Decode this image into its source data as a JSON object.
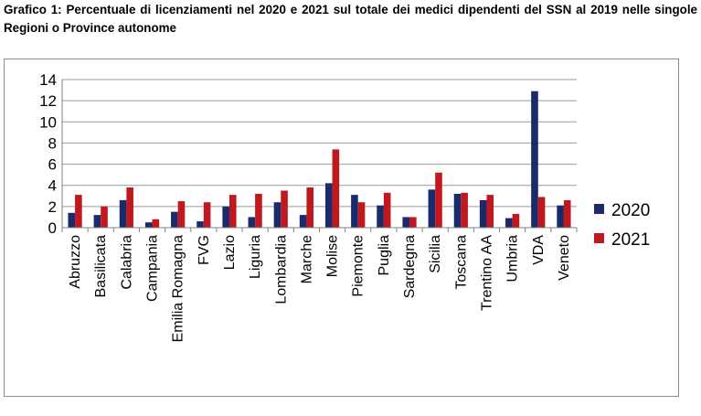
{
  "caption": "Grafico 1: Percentuale di licenziamenti nel 2020 e 2021 sul totale dei medici dipendenti del SSN al 2019 nelle singole Regioni o Province autonome",
  "chart_data": {
    "type": "bar",
    "title": "",
    "xlabel": "",
    "ylabel": "",
    "ylim": [
      0,
      14
    ],
    "yticks": [
      0,
      2,
      4,
      6,
      8,
      10,
      12,
      14
    ],
    "grid": true,
    "legend_position": "right",
    "categories": [
      "Abruzzo",
      "Basilicata",
      "Calabria",
      "Campania",
      "Emilia Romagna",
      "FVG",
      "Lazio",
      "Liguria",
      "Lombardia",
      "Marche",
      "Molise",
      "Piemonte",
      "Puglia",
      "Sardegna",
      "Sicilia",
      "Toscana",
      "Trentino AA",
      "Umbria",
      "VDA",
      "Veneto"
    ],
    "series": [
      {
        "name": "2020",
        "color": "#1b2a6b",
        "values": [
          1.4,
          1.2,
          2.6,
          0.5,
          1.5,
          0.6,
          2.0,
          1.0,
          2.4,
          1.2,
          4.2,
          3.1,
          2.1,
          1.0,
          3.6,
          3.2,
          2.6,
          0.9,
          12.9,
          2.1
        ]
      },
      {
        "name": "2021",
        "color": "#c0181f",
        "values": [
          3.1,
          2.0,
          3.8,
          0.8,
          2.5,
          2.4,
          3.1,
          3.2,
          3.5,
          3.8,
          7.4,
          2.4,
          3.3,
          1.0,
          5.2,
          3.3,
          3.1,
          1.3,
          2.9,
          2.6
        ]
      }
    ]
  }
}
